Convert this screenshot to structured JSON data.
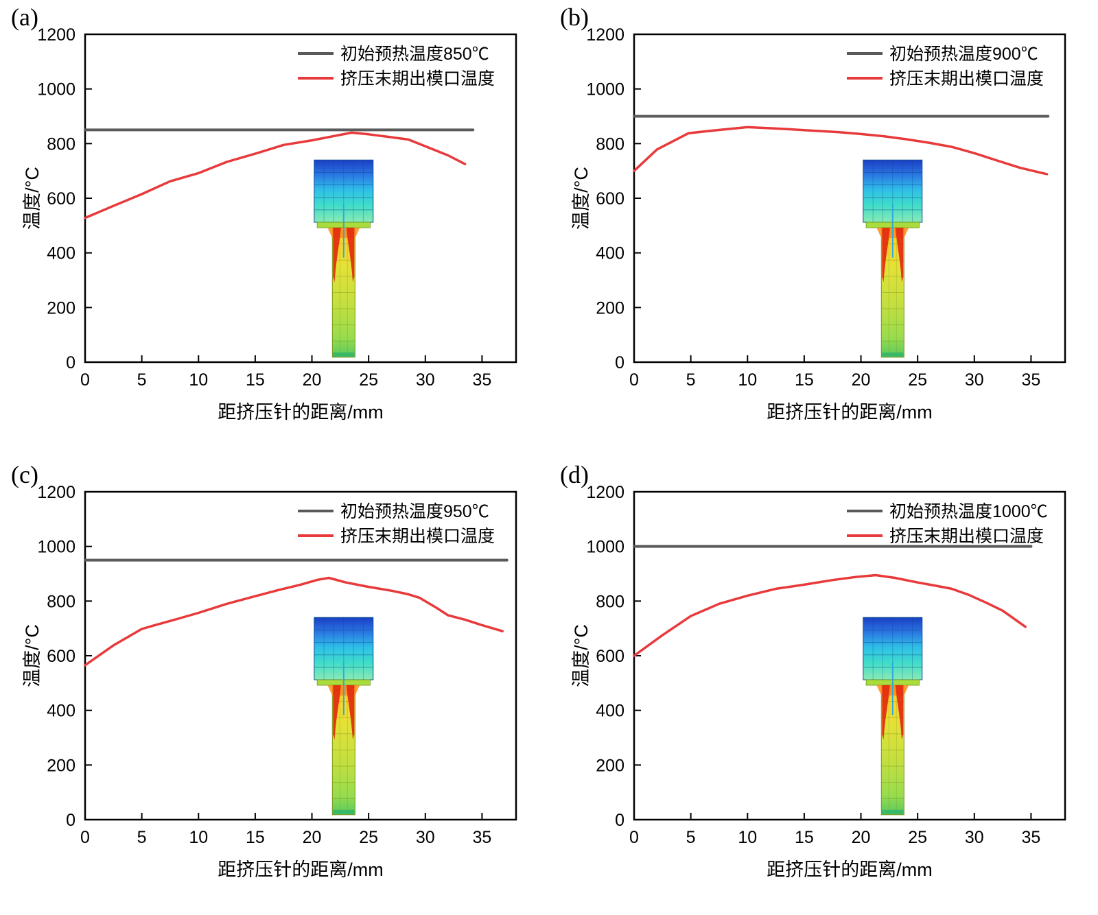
{
  "figure": {
    "background": "#ffffff",
    "x_axis_label": "距挤压针的距离/mm",
    "y_axis_label": "温度/°C",
    "x_ticks": [
      0,
      5,
      10,
      15,
      20,
      25,
      30,
      35
    ],
    "y_ticks": [
      0,
      200,
      400,
      600,
      800,
      1000,
      1200
    ],
    "colors": {
      "preheat_line": "#5a5a5a",
      "exit_curve": "#e8393b",
      "axis": "#000000",
      "text": "#000000"
    },
    "legend_position": "top-right",
    "inset": {
      "name": "extrusion-temperature-contour",
      "cup_x": [
        20.2,
        25.4
      ],
      "cup_y": [
        512,
        740
      ],
      "stem_x": [
        21.8,
        23.8
      ],
      "stem_y": [
        18,
        512
      ]
    }
  },
  "chart_data": [
    {
      "type": "line",
      "panel_label": "(a)",
      "xlabel": "距挤压针的距离/mm",
      "ylabel": "温度/°C",
      "xlim": [
        0,
        38
      ],
      "ylim": [
        0,
        1200
      ],
      "legend": [
        "初始预热温度850℃",
        "挤压末期出模口温度"
      ],
      "series": [
        {
          "name": "初始预热温度850℃",
          "kind": "hline",
          "y": 850,
          "x_start": 0,
          "x_end": 34.2,
          "color": "#5a5a5a"
        },
        {
          "name": "挤压末期出模口温度",
          "kind": "curve",
          "color": "#e8393b",
          "points": [
            [
              0,
              528
            ],
            [
              2.5,
              572
            ],
            [
              5,
              615
            ],
            [
              7.5,
              662
            ],
            [
              10,
              692
            ],
            [
              12.5,
              733
            ],
            [
              15,
              763
            ],
            [
              17.5,
              795
            ],
            [
              20,
              812
            ],
            [
              22,
              828
            ],
            [
              23.5,
              840
            ],
            [
              25,
              834
            ],
            [
              26.5,
              826
            ],
            [
              28.5,
              815
            ],
            [
              30,
              790
            ],
            [
              32,
              757
            ],
            [
              33.5,
              725
            ]
          ]
        }
      ]
    },
    {
      "type": "line",
      "panel_label": "(b)",
      "xlabel": "距挤压针的距离/mm",
      "ylabel": "温度/°C",
      "xlim": [
        0,
        38
      ],
      "ylim": [
        0,
        1200
      ],
      "legend": [
        "初始预热温度900℃",
        "挤压末期出模口温度"
      ],
      "series": [
        {
          "name": "初始预热温度900℃",
          "kind": "hline",
          "y": 900,
          "x_start": 0,
          "x_end": 36.5,
          "color": "#5a5a5a"
        },
        {
          "name": "挤压末期出模口温度",
          "kind": "curve",
          "color": "#e8393b",
          "points": [
            [
              0,
              700
            ],
            [
              2,
              778
            ],
            [
              4.8,
              838
            ],
            [
              7,
              848
            ],
            [
              10,
              860
            ],
            [
              13,
              854
            ],
            [
              15,
              849
            ],
            [
              18,
              842
            ],
            [
              20,
              835
            ],
            [
              22,
              827
            ],
            [
              24,
              816
            ],
            [
              26,
              803
            ],
            [
              28,
              788
            ],
            [
              30,
              765
            ],
            [
              32,
              738
            ],
            [
              34,
              712
            ],
            [
              35.5,
              697
            ],
            [
              36.4,
              688
            ]
          ]
        }
      ]
    },
    {
      "type": "line",
      "panel_label": "(c)",
      "xlabel": "距挤压针的距离/mm",
      "ylabel": "温度/°C",
      "xlim": [
        0,
        38
      ],
      "ylim": [
        0,
        1200
      ],
      "legend": [
        "初始预热温度950℃",
        "挤压末期出模口温度"
      ],
      "series": [
        {
          "name": "初始预热温度950℃",
          "kind": "hline",
          "y": 950,
          "x_start": 0,
          "x_end": 37.2,
          "color": "#5a5a5a"
        },
        {
          "name": "挤压末期出模口温度",
          "kind": "curve",
          "color": "#e8393b",
          "points": [
            [
              0,
              565
            ],
            [
              2.5,
              638
            ],
            [
              5,
              698
            ],
            [
              6,
              710
            ],
            [
              8,
              733
            ],
            [
              10,
              757
            ],
            [
              12.5,
              790
            ],
            [
              15,
              818
            ],
            [
              17,
              840
            ],
            [
              19,
              860
            ],
            [
              20.5,
              878
            ],
            [
              21.5,
              885
            ],
            [
              23,
              868
            ],
            [
              25,
              852
            ],
            [
              27,
              838
            ],
            [
              28.5,
              825
            ],
            [
              29.5,
              812
            ],
            [
              31,
              775
            ],
            [
              32,
              748
            ],
            [
              33.5,
              732
            ],
            [
              35,
              712
            ],
            [
              36.8,
              690
            ]
          ]
        }
      ]
    },
    {
      "type": "line",
      "panel_label": "(d)",
      "xlabel": "距挤压针的距离/mm",
      "ylabel": "温度/°C",
      "xlim": [
        0,
        38
      ],
      "ylim": [
        0,
        1200
      ],
      "legend": [
        "初始预热温度1000℃",
        "挤压末期出模口温度"
      ],
      "series": [
        {
          "name": "初始预热温度1000℃",
          "kind": "hline",
          "y": 1000,
          "x_start": 0,
          "x_end": 35.0,
          "color": "#5a5a5a"
        },
        {
          "name": "挤压末期出模口温度",
          "kind": "curve",
          "color": "#e8393b",
          "points": [
            [
              0,
              600
            ],
            [
              2.5,
              675
            ],
            [
              5,
              745
            ],
            [
              7.5,
              790
            ],
            [
              10,
              820
            ],
            [
              12.5,
              845
            ],
            [
              15,
              860
            ],
            [
              17.5,
              877
            ],
            [
              19.5,
              888
            ],
            [
              21.3,
              895
            ],
            [
              23,
              885
            ],
            [
              25,
              868
            ],
            [
              26.5,
              857
            ],
            [
              28,
              845
            ],
            [
              29.5,
              823
            ],
            [
              31,
              795
            ],
            [
              32.5,
              765
            ],
            [
              34.5,
              706
            ]
          ]
        }
      ]
    }
  ]
}
